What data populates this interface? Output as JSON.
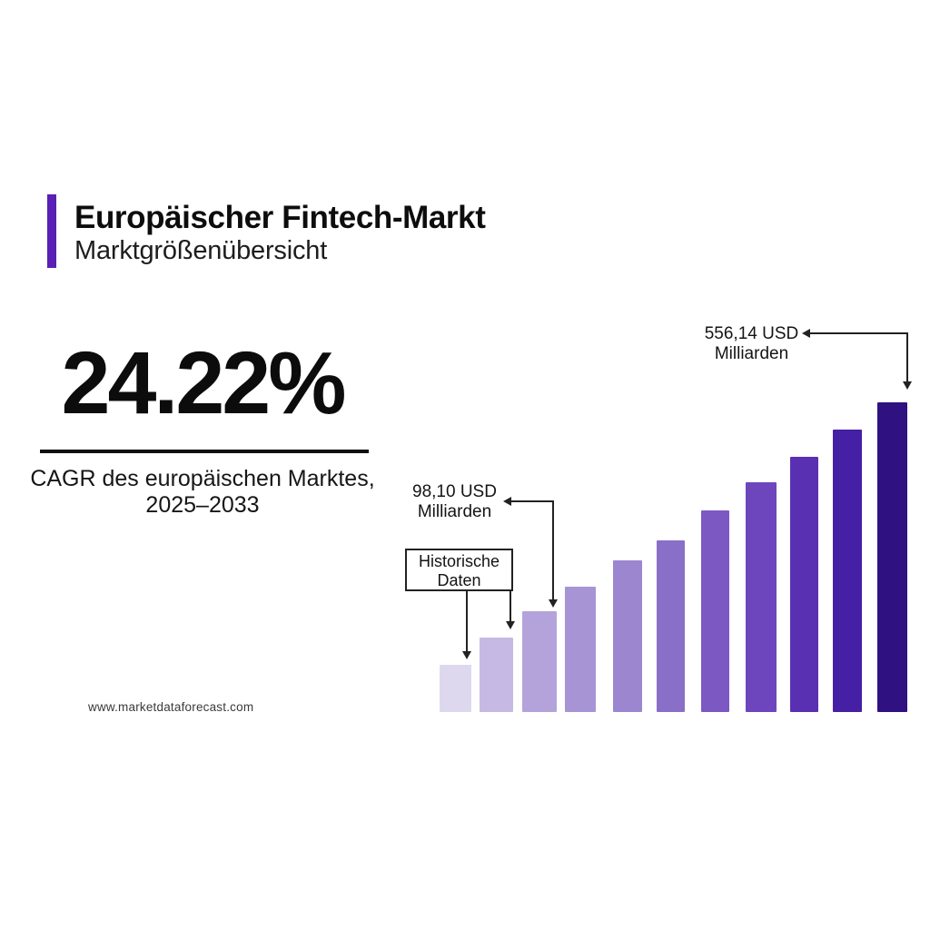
{
  "header": {
    "title": "Europäischer Fintech-Markt",
    "subtitle": "Marktgrößenübersicht",
    "accent_color": "#5a1fb5"
  },
  "stat": {
    "value": "24.22%",
    "caption_line1": "CAGR des europäischen Marktes,",
    "caption_line2": "2025–2033"
  },
  "annotations": {
    "first_forecast": {
      "line1": "98,10 USD",
      "line2": "Milliarden"
    },
    "final_value": {
      "line1": "556,14 USD",
      "line2": "Milliarden"
    },
    "historical": {
      "line1": "Historische",
      "line2": "Daten"
    }
  },
  "footer": {
    "website": "www.marketdataforecast.com"
  },
  "chart_data": {
    "type": "bar",
    "title": "Europäischer Fintech-Markt — Marktgrößenübersicht",
    "unit": "USD Milliarden",
    "n_bars": 11,
    "axes_visible": false,
    "gridlines": false,
    "tick_labels_visible": false,
    "bar_heights_relative": [
      52,
      82,
      111,
      138,
      167,
      189,
      222,
      253,
      281,
      311,
      341
    ],
    "bar_colors": [
      "#ded8ef",
      "#c6b9e3",
      "#b3a3da",
      "#a794d4",
      "#9c86d0",
      "#8a6fc8",
      "#7c58c3",
      "#6d46bd",
      "#5a30b2",
      "#451fa4",
      "#2f1181"
    ],
    "labeled_values": [
      {
        "bar_index": 2,
        "label": "98,10 USD Milliarden",
        "value": 98.1
      },
      {
        "bar_index": 10,
        "label": "556,14 USD Milliarden",
        "value": 556.14
      }
    ],
    "historical_bars": {
      "indices": [
        0,
        1
      ],
      "label": "Historische Daten"
    },
    "cagr": {
      "value_pct": 24.22,
      "period": "2025–2033",
      "description": "CAGR des europäischen Marktes"
    }
  }
}
